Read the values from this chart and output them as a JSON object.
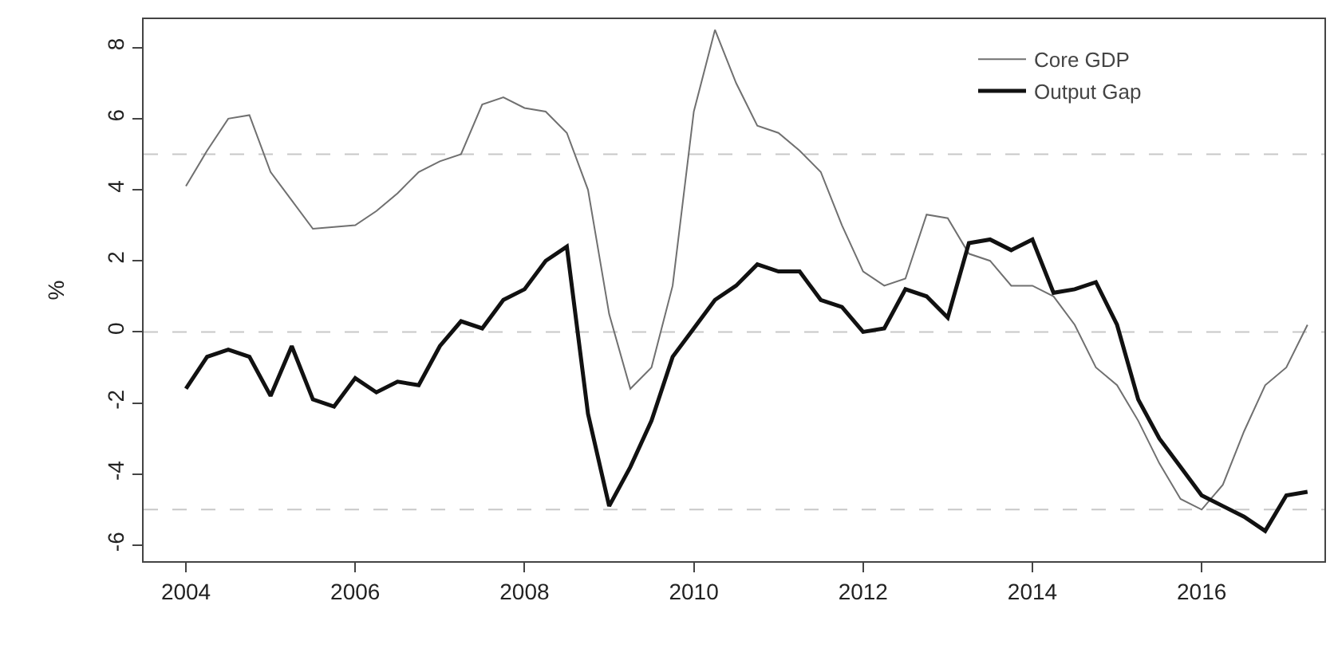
{
  "chart_data": {
    "type": "line",
    "ylabel": "%",
    "x": [
      2004,
      2004.25,
      2004.5,
      2004.75,
      2005,
      2005.25,
      2005.5,
      2005.75,
      2006,
      2006.25,
      2006.5,
      2006.75,
      2007,
      2007.25,
      2007.5,
      2007.75,
      2008,
      2008.25,
      2008.5,
      2008.75,
      2009,
      2009.25,
      2009.5,
      2009.75,
      2010,
      2010.25,
      2010.5,
      2010.75,
      2011,
      2011.25,
      2011.5,
      2011.75,
      2012,
      2012.25,
      2012.5,
      2012.75,
      2013,
      2013.25,
      2013.5,
      2013.75,
      2014,
      2014.25,
      2014.5,
      2014.75,
      2015,
      2015.25,
      2015.5,
      2015.75,
      2016,
      2016.25,
      2016.5,
      2016.75,
      2017,
      2017.25
    ],
    "series": [
      {
        "name": "Core GDP",
        "color": "#707070",
        "values": [
          4.1,
          5.1,
          6.0,
          6.1,
          4.5,
          3.7,
          2.9,
          2.95,
          3.0,
          3.4,
          3.9,
          4.5,
          4.8,
          5.0,
          6.4,
          6.6,
          6.3,
          6.2,
          5.6,
          4.0,
          0.5,
          -1.6,
          -1.0,
          1.3,
          6.2,
          8.5,
          7.0,
          5.8,
          5.6,
          5.1,
          4.5,
          3.0,
          1.7,
          1.3,
          1.5,
          3.3,
          3.2,
          2.2,
          2.0,
          1.3,
          1.3,
          1.0,
          0.2,
          -1.0,
          -1.5,
          -2.5,
          -3.7,
          -4.7,
          -5.0,
          -4.3,
          -2.8,
          -1.5,
          -1.0,
          0.2
        ]
      },
      {
        "name": "Output Gap",
        "color": "#111111",
        "values": [
          -1.6,
          -0.7,
          -0.5,
          -0.7,
          -1.8,
          -0.4,
          -1.9,
          -2.1,
          -1.3,
          -1.7,
          -1.4,
          -1.5,
          -0.4,
          0.3,
          0.1,
          0.9,
          1.2,
          2.0,
          2.4,
          -2.3,
          -4.9,
          -3.8,
          -2.5,
          -0.7,
          0.1,
          0.9,
          1.3,
          1.9,
          1.7,
          1.7,
          0.9,
          0.7,
          0.0,
          0.1,
          1.2,
          1.0,
          0.4,
          2.5,
          2.6,
          2.3,
          2.6,
          1.1,
          1.2,
          1.4,
          0.2,
          -1.9,
          -3.0,
          -3.8,
          -4.6,
          -4.9,
          -5.2,
          -5.6,
          -4.6,
          -4.5
        ]
      }
    ],
    "xlim": [
      2003.5,
      2017.45
    ],
    "xticks": [
      2004,
      2006,
      2008,
      2010,
      2012,
      2014,
      2016
    ],
    "ylim": [
      -6.45,
      8.8
    ],
    "yticks": [
      -6,
      -4,
      -2,
      0,
      2,
      4,
      6,
      8
    ],
    "ref_lines": [
      {
        "axis": "y",
        "value": 5,
        "color": "#c8c8c8",
        "line_style": "dashed"
      },
      {
        "axis": "y",
        "value": 0,
        "color": "#c8c8c8",
        "line_style": "dashed"
      },
      {
        "axis": "y",
        "value": -5,
        "color": "#c8c8c8",
        "line_style": "dashed"
      }
    ],
    "legend": "top right",
    "grid": false,
    "line_style": "solid",
    "marker": "none"
  }
}
